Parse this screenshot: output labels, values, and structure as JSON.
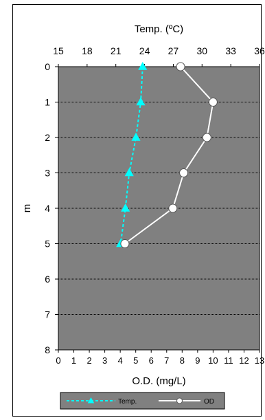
{
  "chart_data": {
    "type": "line",
    "orientation": "depth-profile",
    "top_axis": {
      "label": "Temp. (ºC)",
      "range": [
        15,
        36
      ],
      "ticks": [
        "15",
        "18",
        "21",
        "24",
        "27",
        "30",
        "33",
        "36"
      ]
    },
    "bottom_axis": {
      "label": "O.D. (mg/L)",
      "range": [
        0,
        13
      ],
      "ticks": [
        "0",
        "1",
        "2",
        "3",
        "4",
        "5",
        "6",
        "7",
        "8",
        "9",
        "10",
        "11",
        "12",
        "13"
      ]
    },
    "y_axis": {
      "label": "m",
      "range": [
        0,
        8
      ],
      "inverted": true,
      "ticks": [
        "0",
        "1",
        "2",
        "3",
        "4",
        "5",
        "6",
        "7",
        "8"
      ]
    },
    "grid": true,
    "plot_background": "#808080",
    "legend_position": "bottom",
    "series": [
      {
        "name": "Temp.",
        "axis": "top",
        "color": "#00ffff",
        "style": "dashed",
        "marker": "triangle",
        "points": [
          {
            "depth": 0,
            "value": 23.8
          },
          {
            "depth": 1,
            "value": 23.6
          },
          {
            "depth": 2,
            "value": 23.1
          },
          {
            "depth": 3,
            "value": 22.4
          },
          {
            "depth": 4,
            "value": 22.0
          },
          {
            "depth": 5,
            "value": 21.5
          }
        ]
      },
      {
        "name": "OD",
        "axis": "bottom",
        "color": "#ffffff",
        "style": "solid",
        "marker": "circle",
        "points": [
          {
            "depth": 0,
            "value": 7.9
          },
          {
            "depth": 1,
            "value": 10.0
          },
          {
            "depth": 2,
            "value": 9.6
          },
          {
            "depth": 3,
            "value": 8.1
          },
          {
            "depth": 4,
            "value": 7.4
          },
          {
            "depth": 5,
            "value": 4.3
          }
        ]
      }
    ]
  }
}
